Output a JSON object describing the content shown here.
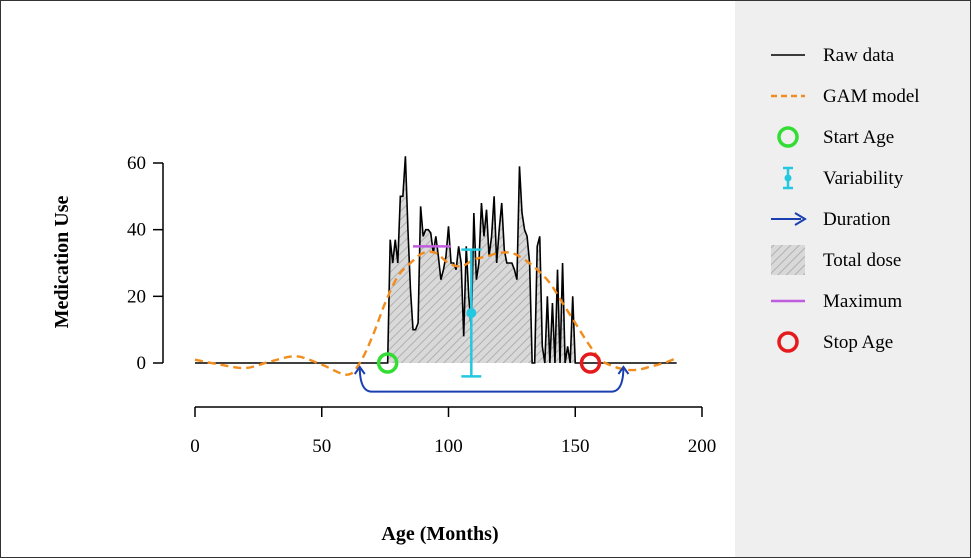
{
  "chart_data": {
    "type": "line",
    "xlabel": "Age (Months)",
    "ylabel": "Medication Use",
    "xlim": [
      0,
      200
    ],
    "ylim": [
      0,
      60
    ],
    "x_ticks": [
      "0",
      "50",
      "100",
      "150",
      "200"
    ],
    "y_ticks": [
      "0",
      "20",
      "40",
      "60"
    ],
    "grid": false,
    "legend_position": "right",
    "colors": {
      "raw": "#000000",
      "gam": "#f28c1c",
      "start": "#33dd33",
      "variability": "#22c8e0",
      "duration": "#1a3fb0",
      "total_dose": "#c8c8c8",
      "maximum": "#c05ce0",
      "stop": "#e41a1c"
    },
    "series": [
      {
        "name": "Raw data",
        "x": [
          0,
          76,
          77,
          78,
          79,
          80,
          81,
          82,
          83,
          84,
          85,
          86,
          87,
          88,
          89,
          90,
          91,
          92,
          93,
          94,
          95,
          96,
          97,
          98,
          99,
          100,
          101,
          102,
          103,
          104,
          105,
          106,
          107,
          108,
          109,
          110,
          111,
          112,
          113,
          114,
          115,
          116,
          117,
          118,
          119,
          120,
          121,
          122,
          123,
          124,
          125,
          126,
          127,
          128,
          129,
          130,
          131,
          132,
          133,
          134,
          135,
          136,
          137,
          138,
          139,
          140,
          141,
          142,
          143,
          144,
          145,
          146,
          147,
          148,
          149,
          150,
          151,
          152,
          153,
          154,
          155,
          156,
          157,
          158,
          190
        ],
        "y": [
          0,
          0,
          37,
          30,
          37,
          30,
          50,
          50,
          62,
          40,
          22,
          10,
          10,
          12,
          47,
          38,
          40,
          40,
          39,
          33,
          38,
          32,
          25,
          28,
          32,
          41,
          30,
          30,
          28,
          35,
          30,
          8,
          35,
          20,
          10,
          45,
          25,
          30,
          48,
          38,
          46,
          32,
          38,
          50,
          30,
          40,
          48,
          34,
          30,
          30,
          30,
          28,
          25,
          59,
          45,
          40,
          38,
          30,
          0,
          0,
          35,
          38,
          5,
          0,
          20,
          0,
          18,
          0,
          28,
          0,
          30,
          0,
          5,
          0,
          20,
          0,
          0,
          0,
          0,
          0,
          0,
          0,
          0,
          0,
          0
        ]
      },
      {
        "name": "GAM model",
        "x": [
          0,
          10,
          20,
          30,
          40,
          50,
          60,
          65,
          70,
          75,
          80,
          85,
          90,
          95,
          100,
          105,
          110,
          115,
          120,
          125,
          130,
          135,
          140,
          145,
          150,
          155,
          160,
          165,
          170,
          175,
          180,
          185,
          190
        ],
        "y": [
          1,
          -0.5,
          -1.5,
          0.5,
          2,
          -0.5,
          -3.5,
          0,
          8,
          18,
          26,
          30,
          33,
          33,
          30,
          29,
          31,
          32,
          33,
          33,
          31,
          28,
          24,
          18,
          12,
          6,
          1,
          -1,
          -2,
          -2,
          -1,
          0,
          1.5
        ]
      }
    ],
    "annotations": {
      "start_age": {
        "x": 76,
        "y": 0,
        "label": "Start Age"
      },
      "stop_age": {
        "x": 156,
        "y": 0,
        "label": "Stop Age"
      },
      "variability": {
        "x": 109,
        "mean": 15,
        "low": -4,
        "high": 34,
        "label": "Variability"
      },
      "maximum": {
        "x_start": 86,
        "x_end": 101,
        "y": 35,
        "label": "Maximum"
      },
      "duration": {
        "x_start": 65,
        "x_end": 169,
        "y": -8,
        "label": "Duration"
      },
      "total_dose": {
        "x_start": 76,
        "x_end": 156,
        "label": "Total dose"
      }
    },
    "legend": [
      {
        "key": "raw",
        "label": "Raw data"
      },
      {
        "key": "gam",
        "label": "GAM model"
      },
      {
        "key": "start",
        "label": "Start Age"
      },
      {
        "key": "variability",
        "label": "Variability"
      },
      {
        "key": "duration",
        "label": "Duration"
      },
      {
        "key": "total_dose",
        "label": "Total dose"
      },
      {
        "key": "maximum",
        "label": "Maximum"
      },
      {
        "key": "stop",
        "label": "Stop Age"
      }
    ]
  }
}
